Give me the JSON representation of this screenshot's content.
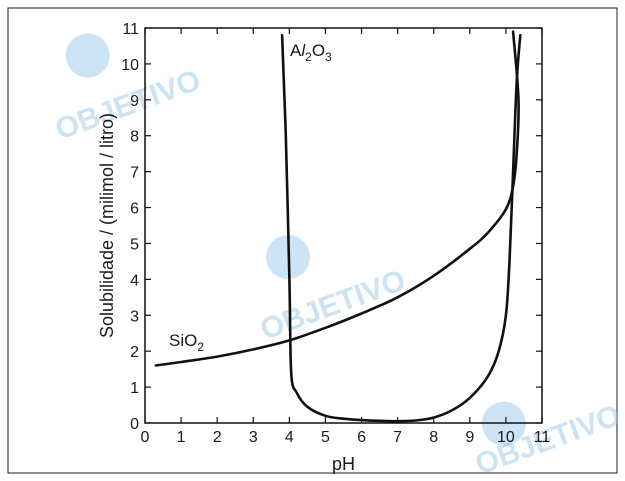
{
  "watermark": "OBJETIVO",
  "chart_data": {
    "type": "line",
    "xlabel": "pH",
    "ylabel": "Solubilidade / (milimol / litro)",
    "xlim": [
      0,
      11
    ],
    "ylim": [
      0,
      11
    ],
    "x_ticks": [
      0,
      1,
      2,
      3,
      4,
      5,
      6,
      7,
      8,
      9,
      10,
      11
    ],
    "y_ticks": [
      0,
      1,
      2,
      3,
      4,
      5,
      6,
      7,
      8,
      9,
      10,
      11
    ],
    "grid": false,
    "series": [
      {
        "name": "Al2O3",
        "label_parts": [
          "A",
          "l",
          "2",
          "O",
          "3"
        ],
        "color": "#111111",
        "points": [
          [
            3.8,
            10.8
          ],
          [
            3.9,
            8.0
          ],
          [
            4.0,
            4.0
          ],
          [
            4.05,
            1.4
          ],
          [
            4.2,
            0.85
          ],
          [
            4.5,
            0.45
          ],
          [
            5.0,
            0.2
          ],
          [
            5.5,
            0.12
          ],
          [
            6.0,
            0.08
          ],
          [
            6.5,
            0.06
          ],
          [
            7.0,
            0.05
          ],
          [
            7.5,
            0.07
          ],
          [
            8.0,
            0.15
          ],
          [
            8.5,
            0.35
          ],
          [
            9.0,
            0.7
          ],
          [
            9.5,
            1.3
          ],
          [
            9.8,
            2.0
          ],
          [
            10.0,
            3.0
          ],
          [
            10.1,
            4.5
          ],
          [
            10.2,
            7.0
          ],
          [
            10.3,
            9.5
          ],
          [
            10.4,
            10.8
          ]
        ]
      },
      {
        "name": "SiO2",
        "label_parts": [
          "SiO",
          "2"
        ],
        "color": "#111111",
        "points": [
          [
            0.3,
            1.6
          ],
          [
            1.0,
            1.7
          ],
          [
            2.0,
            1.85
          ],
          [
            3.0,
            2.05
          ],
          [
            4.0,
            2.3
          ],
          [
            5.0,
            2.65
          ],
          [
            6.0,
            3.05
          ],
          [
            7.0,
            3.5
          ],
          [
            8.0,
            4.1
          ],
          [
            9.0,
            4.85
          ],
          [
            9.5,
            5.3
          ],
          [
            10.0,
            5.95
          ],
          [
            10.2,
            6.6
          ],
          [
            10.3,
            7.5
          ],
          [
            10.35,
            9.0
          ],
          [
            10.2,
            10.9
          ]
        ]
      }
    ]
  }
}
